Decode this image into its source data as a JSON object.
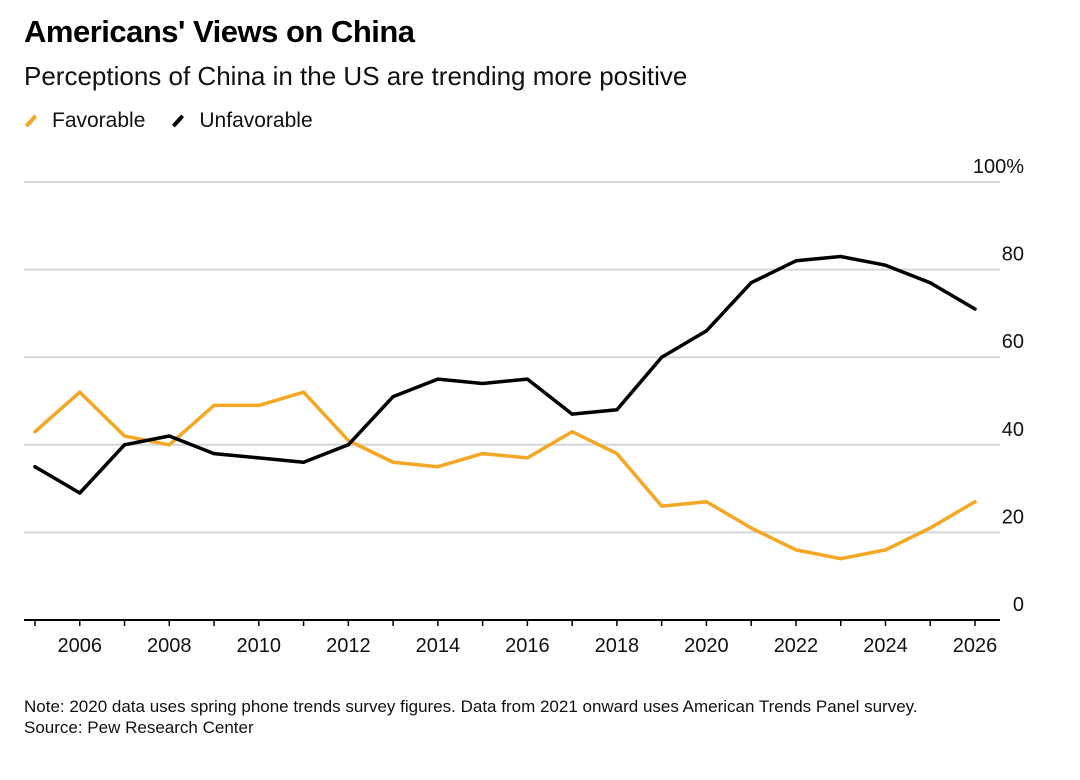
{
  "header": {
    "title": "Americans' Views on China",
    "subtitle": "Perceptions of China in the US are trending more positive"
  },
  "legend": {
    "items": [
      {
        "label": "Favorable",
        "color": "#f5a623"
      },
      {
        "label": "Unfavorable",
        "color": "#000000"
      }
    ]
  },
  "chart_data": {
    "type": "line",
    "title": "Americans' Views on China",
    "subtitle": "Perceptions of China in the US are trending more positive",
    "xlabel": "",
    "ylabel": "",
    "xlim": [
      2005,
      2026.6
    ],
    "ylim": [
      0,
      100
    ],
    "y_ticks": [
      0,
      20,
      40,
      60,
      80,
      100
    ],
    "y_tick_labels": [
      "0",
      "20",
      "40",
      "60",
      "80",
      "100%"
    ],
    "x_ticks": [
      2006,
      2008,
      2010,
      2012,
      2014,
      2016,
      2018,
      2020,
      2022,
      2024,
      2026
    ],
    "x_tick_labels": [
      "2006",
      "2008",
      "2010",
      "2012",
      "2014",
      "2016",
      "2018",
      "2020",
      "2022",
      "2024",
      "2026"
    ],
    "grid": true,
    "legend_position": "top-left",
    "series": [
      {
        "name": "Favorable",
        "color": "#f5a623",
        "x": [
          2005,
          2006,
          2007,
          2008,
          2009,
          2010,
          2011,
          2012,
          2013,
          2014,
          2015,
          2016,
          2017,
          2018,
          2019,
          2020,
          2021,
          2022,
          2023,
          2024,
          2025,
          2026
        ],
        "values": [
          43,
          52,
          42,
          40,
          49,
          49,
          52,
          41,
          36,
          35,
          38,
          37,
          43,
          38,
          26,
          27,
          21,
          16,
          14,
          16,
          21,
          27
        ]
      },
      {
        "name": "Unfavorable",
        "color": "#000000",
        "x": [
          2005,
          2006,
          2007,
          2008,
          2009,
          2010,
          2011,
          2012,
          2013,
          2014,
          2015,
          2016,
          2017,
          2018,
          2019,
          2020,
          2021,
          2022,
          2023,
          2024,
          2025,
          2026
        ],
        "values": [
          35,
          29,
          40,
          42,
          38,
          37,
          36,
          40,
          51,
          55,
          54,
          55,
          47,
          48,
          60,
          66,
          77,
          82,
          83,
          81,
          77,
          71
        ]
      }
    ]
  },
  "footer": {
    "note": "Note: 2020 data uses spring phone trends survey figures. Data from 2021 onward uses American Trends Panel survey.",
    "source": "Source: Pew Research Center"
  }
}
